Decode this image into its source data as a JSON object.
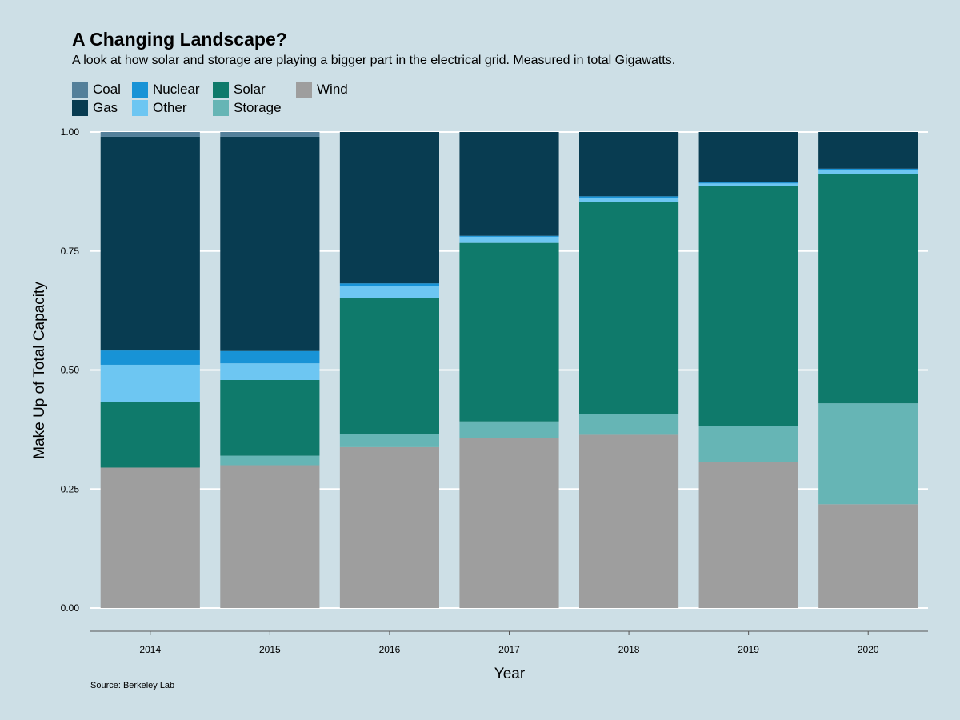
{
  "chart_data": {
    "type": "bar",
    "stacked": true,
    "title": "A Changing Landscape?",
    "subtitle": "A look at how solar and storage are playing a bigger part in the electrical grid. Measured in total Gigawatts.",
    "xlabel": "Year",
    "ylabel": "Make Up of Total Capacity",
    "source": "Source: Berkeley Lab",
    "ylim": [
      0,
      1
    ],
    "yticks": [
      "0.00",
      "0.25",
      "0.50",
      "0.75",
      "1.00"
    ],
    "legend_position": "top-left",
    "grid": "horizontal",
    "categories": [
      "2014",
      "2015",
      "2016",
      "2017",
      "2018",
      "2019",
      "2020"
    ],
    "series": [
      {
        "name": "Wind",
        "color": "#9e9e9e",
        "values": [
          0.295,
          0.3,
          0.338,
          0.357,
          0.364,
          0.307,
          0.218
        ]
      },
      {
        "name": "Storage",
        "color": "#66b5b5",
        "values": [
          0.0,
          0.02,
          0.027,
          0.035,
          0.044,
          0.075,
          0.212
        ]
      },
      {
        "name": "Solar",
        "color": "#0f7a6b",
        "values": [
          0.138,
          0.159,
          0.287,
          0.375,
          0.445,
          0.504,
          0.482
        ]
      },
      {
        "name": "Other",
        "color": "#6dc6f2",
        "values": [
          0.078,
          0.035,
          0.024,
          0.013,
          0.008,
          0.006,
          0.008
        ]
      },
      {
        "name": "Nuclear",
        "color": "#1893d6",
        "values": [
          0.03,
          0.026,
          0.006,
          0.002,
          0.004,
          0.002,
          0.003
        ]
      },
      {
        "name": "Gas",
        "color": "#083c51",
        "values": [
          0.449,
          0.45,
          0.318,
          0.218,
          0.135,
          0.106,
          0.077
        ]
      },
      {
        "name": "Coal",
        "color": "#54809a",
        "values": [
          0.01,
          0.01,
          0.0,
          0.0,
          0.0,
          0.0,
          0.0
        ]
      }
    ],
    "legend_order": [
      "Coal",
      "Gas",
      "Nuclear",
      "Other",
      "Solar",
      "Storage",
      "Wind"
    ]
  }
}
